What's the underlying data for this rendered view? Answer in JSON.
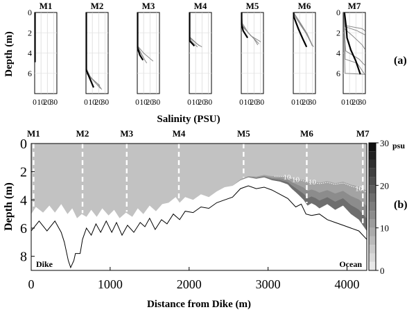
{
  "chart_data": [
    {
      "type": "line",
      "panel_label": "(a)",
      "title": "",
      "xlabel": "Salinity (PSU)",
      "ylabel": "Depth (m)",
      "xlim": [
        0,
        35
      ],
      "ylim": [
        0,
        8
      ],
      "xticks": [
        "0",
        "10",
        "20",
        "30"
      ],
      "yticks": [
        "0",
        "2",
        "4",
        "6"
      ],
      "y_inverted": true,
      "stations": [
        {
          "name": "M1",
          "bottom_depth": 4.9,
          "thin": [],
          "thick": [
            [
              0.5,
              0
            ],
            [
              0.5,
              4.9
            ]
          ]
        },
        {
          "name": "M2",
          "bottom_depth": 7.6,
          "thin": [
            [
              [
                0.5,
                0
              ],
              [
                0.5,
                5.5
              ],
              [
                8,
                6.5
              ],
              [
                22,
                7.2
              ]
            ],
            [
              [
                0.5,
                0
              ],
              [
                0.5,
                5.8
              ],
              [
                13,
                6.8
              ],
              [
                23,
                7.5
              ]
            ],
            [
              [
                0.5,
                0
              ],
              [
                0.5,
                6.0
              ],
              [
                18,
                7.0
              ],
              [
                25,
                7.6
              ]
            ]
          ],
          "thick": [
            [
              0.5,
              0
            ],
            [
              0.5,
              5.7
            ],
            [
              6,
              6.5
            ],
            [
              12,
              7.4
            ]
          ]
        },
        {
          "name": "M3",
          "bottom_depth": 5.0,
          "thin": [
            [
              [
                0.5,
                0
              ],
              [
                0.5,
                3.3
              ],
              [
                10,
                4.0
              ],
              [
                25,
                4.8
              ]
            ],
            [
              [
                0.5,
                0
              ],
              [
                0.5,
                3.5
              ],
              [
                8,
                4.3
              ],
              [
                15,
                5.0
              ]
            ],
            [
              [
                0.5,
                0
              ],
              [
                0.5,
                3.3
              ],
              [
                5,
                3.9
              ],
              [
                11,
                4.6
              ]
            ]
          ],
          "thick": [
            [
              0.5,
              0
            ],
            [
              0.5,
              3.5
            ],
            [
              4,
              4.2
            ],
            [
              9,
              4.7
            ]
          ]
        },
        {
          "name": "M4",
          "bottom_depth": 3.5,
          "thin": [
            [
              [
                0.5,
                0
              ],
              [
                0.5,
                2.5
              ],
              [
                12,
                3.1
              ],
              [
                20,
                3.4
              ]
            ],
            [
              [
                0.5,
                0
              ],
              [
                0.5,
                2.4
              ],
              [
                9,
                2.9
              ],
              [
                16,
                3.3
              ]
            ],
            [
              [
                0.5,
                0
              ],
              [
                0.5,
                2.6
              ],
              [
                6,
                3.0
              ],
              [
                13,
                3.4
              ]
            ]
          ],
          "thick": [
            [
              0.5,
              0
            ],
            [
              0.5,
              2.8
            ],
            [
              5,
              3.1
            ],
            [
              8,
              3.3
            ]
          ]
        },
        {
          "name": "M5",
          "bottom_depth": 3.2,
          "thin": [
            [
              [
                0.5,
                0
              ],
              [
                1,
                1.0
              ],
              [
                11,
                2.0
              ],
              [
                22,
                2.7
              ],
              [
                28,
                3.1
              ]
            ],
            [
              [
                0.5,
                0
              ],
              [
                0.8,
                1.2
              ],
              [
                15,
                2.3
              ],
              [
                31,
                2.9
              ]
            ],
            [
              [
                0.5,
                0
              ],
              [
                2,
                1.4
              ],
              [
                20,
                2.6
              ],
              [
                26,
                3.2
              ]
            ]
          ],
          "thick": [
            [
              0.5,
              0
            ],
            [
              0.5,
              1.2
            ],
            [
              3,
              1.8
            ],
            [
              10,
              2.5
            ]
          ]
        },
        {
          "name": "M6",
          "bottom_depth": 3.4,
          "thin": [
            [
              [
                0.5,
                0
              ],
              [
                1,
                0.2
              ],
              [
                13,
                1.4
              ],
              [
                24,
                2.4
              ],
              [
                30,
                3.3
              ]
            ],
            [
              [
                0.5,
                0
              ],
              [
                6,
                0.6
              ],
              [
                18,
                1.8
              ],
              [
                27,
                2.9
              ],
              [
                32,
                3.4
              ]
            ],
            [
              [
                0.5,
                0
              ],
              [
                10,
                0.9
              ],
              [
                22,
                2.1
              ],
              [
                30,
                3.2
              ]
            ]
          ],
          "thick": [
            [
              0.5,
              0
            ],
            [
              0.8,
              0.4
            ],
            [
              8,
              1.6
            ],
            [
              15,
              2.6
            ],
            [
              21,
              3.4
            ]
          ]
        },
        {
          "name": "M7",
          "bottom_depth": 6.1,
          "thin": [
            [
              [
                1,
                0
              ],
              [
                4,
                1.3
              ],
              [
                30,
                1.6
              ],
              [
                34,
                1.8
              ]
            ],
            [
              [
                1,
                0
              ],
              [
                3,
                1.4
              ],
              [
                22,
                1.8
              ],
              [
                34,
                2.2
              ]
            ],
            [
              [
                1,
                0
              ],
              [
                2,
                1.6
              ],
              [
                13,
                2.2
              ],
              [
                30,
                3.2
              ],
              [
                34,
                3.6
              ]
            ],
            [
              [
                1,
                0
              ],
              [
                2,
                2.0
              ],
              [
                4,
                3.8
              ],
              [
                25,
                4.6
              ],
              [
                34,
                5.2
              ]
            ],
            [
              [
                1,
                0
              ],
              [
                3,
                3.0
              ],
              [
                3,
                4.6
              ],
              [
                22,
                5.0
              ],
              [
                34,
                6.1
              ]
            ],
            [
              [
                1,
                0
              ],
              [
                2,
                4.0
              ],
              [
                3,
                6.0
              ],
              [
                34,
                6.1
              ]
            ]
          ],
          "thick": [
            [
              2,
              0
            ],
            [
              5,
              1.6
            ],
            [
              6,
              2.5
            ],
            [
              12,
              3.7
            ],
            [
              20,
              4.8
            ],
            [
              27,
              6.1
            ]
          ]
        }
      ]
    },
    {
      "type": "heatmap",
      "panel_label": "(b)",
      "title": "",
      "xlabel": "Distance from Dike (m)",
      "ylabel": "Depth (m)",
      "xlim": [
        0,
        4250
      ],
      "ylim": [
        0,
        9
      ],
      "y_inverted": true,
      "xticks": [
        "0",
        "1000",
        "2000",
        "3000",
        "4000"
      ],
      "yticks": [
        "0",
        "2",
        "4",
        "6",
        "8"
      ],
      "colorbar": {
        "unit": "psu",
        "min": 0,
        "max": 30,
        "ticks": [
          "0",
          "10",
          "20",
          "30"
        ]
      },
      "stations": [
        {
          "name": "M1",
          "x": 30
        },
        {
          "name": "M2",
          "x": 650
        },
        {
          "name": "M3",
          "x": 1210
        },
        {
          "name": "M4",
          "x": 1870
        },
        {
          "name": "M5",
          "x": 2690
        },
        {
          "name": "M6",
          "x": 3490
        },
        {
          "name": "M7",
          "x": 4200
        }
      ],
      "contour_label": "10",
      "contour_label_repeats": 4,
      "annotations": {
        "left": "Dike",
        "right": "Ocean"
      },
      "surface_layer_psu": 6,
      "fill_bottom": [
        [
          0,
          5.0
        ],
        [
          60,
          4.5
        ],
        [
          150,
          4.9
        ],
        [
          230,
          4.4
        ],
        [
          300,
          4.9
        ],
        [
          380,
          4.3
        ],
        [
          460,
          5.0
        ],
        [
          520,
          4.6
        ],
        [
          580,
          5.3
        ],
        [
          640,
          5.0
        ],
        [
          700,
          5.2
        ],
        [
          760,
          4.7
        ],
        [
          830,
          5.2
        ],
        [
          900,
          4.6
        ],
        [
          980,
          5.1
        ],
        [
          1050,
          4.7
        ],
        [
          1120,
          5.3
        ],
        [
          1200,
          4.9
        ],
        [
          1280,
          5.2
        ],
        [
          1350,
          4.6
        ],
        [
          1420,
          5.0
        ],
        [
          1500,
          4.4
        ],
        [
          1580,
          4.8
        ],
        [
          1660,
          4.3
        ],
        [
          1740,
          4.2
        ],
        [
          1830,
          3.8
        ],
        [
          1880,
          4.2
        ],
        [
          1950,
          3.8
        ],
        [
          2050,
          4.0
        ],
        [
          2150,
          3.6
        ],
        [
          2250,
          3.8
        ],
        [
          2350,
          3.4
        ],
        [
          2450,
          3.1
        ],
        [
          2550,
          3.0
        ],
        [
          2650,
          2.6
        ],
        [
          2750,
          2.4
        ],
        [
          2850,
          2.5
        ],
        [
          2950,
          2.4
        ],
        [
          3050,
          2.6
        ],
        [
          3150,
          2.7
        ],
        [
          3250,
          2.9
        ],
        [
          3300,
          3.2
        ],
        [
          3380,
          3.6
        ],
        [
          3450,
          4.0
        ],
        [
          3500,
          4.4
        ],
        [
          3560,
          4.2
        ],
        [
          3650,
          4.6
        ],
        [
          3750,
          4.3
        ],
        [
          3850,
          4.7
        ],
        [
          3950,
          4.4
        ],
        [
          4050,
          5.0
        ],
        [
          4150,
          5.4
        ],
        [
          4250,
          6.2
        ]
      ],
      "seabed": [
        [
          0,
          6.2
        ],
        [
          100,
          5.5
        ],
        [
          200,
          6.2
        ],
        [
          300,
          5.5
        ],
        [
          380,
          6.3
        ],
        [
          420,
          7.0
        ],
        [
          470,
          8.3
        ],
        [
          500,
          8.8
        ],
        [
          540,
          8.3
        ],
        [
          560,
          7.8
        ],
        [
          620,
          7.8
        ],
        [
          650,
          6.8
        ],
        [
          700,
          6.0
        ],
        [
          760,
          6.5
        ],
        [
          820,
          5.7
        ],
        [
          880,
          6.3
        ],
        [
          950,
          5.5
        ],
        [
          1020,
          6.3
        ],
        [
          1080,
          5.6
        ],
        [
          1150,
          6.5
        ],
        [
          1220,
          5.8
        ],
        [
          1300,
          6.3
        ],
        [
          1380,
          5.6
        ],
        [
          1440,
          5.9
        ],
        [
          1500,
          5.3
        ],
        [
          1570,
          6.1
        ],
        [
          1650,
          5.4
        ],
        [
          1720,
          5.7
        ],
        [
          1800,
          5.0
        ],
        [
          1880,
          5.4
        ],
        [
          1950,
          4.8
        ],
        [
          2050,
          4.9
        ],
        [
          2150,
          4.5
        ],
        [
          2250,
          4.6
        ],
        [
          2350,
          4.2
        ],
        [
          2450,
          4.0
        ],
        [
          2550,
          3.8
        ],
        [
          2650,
          3.2
        ],
        [
          2750,
          3.0
        ],
        [
          2850,
          3.2
        ],
        [
          2950,
          3.1
        ],
        [
          3050,
          3.3
        ],
        [
          3150,
          3.6
        ],
        [
          3250,
          3.9
        ],
        [
          3350,
          4.5
        ],
        [
          3420,
          4.3
        ],
        [
          3480,
          5.0
        ],
        [
          3550,
          5.1
        ],
        [
          3650,
          5.0
        ],
        [
          3750,
          5.4
        ],
        [
          3850,
          5.6
        ],
        [
          3950,
          5.8
        ],
        [
          4050,
          6.0
        ],
        [
          4150,
          6.2
        ],
        [
          4250,
          6.8
        ]
      ]
    }
  ]
}
